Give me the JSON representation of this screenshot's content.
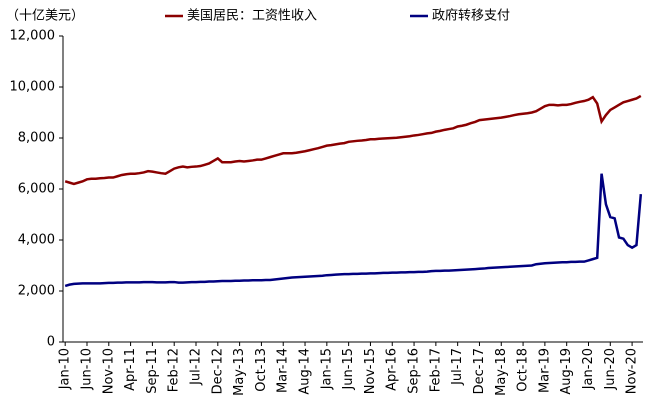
{
  "chart_data": {
    "type": "line",
    "y_unit_label": "（十亿美元）",
    "categories": [
      "Jan-10",
      null,
      null,
      null,
      null,
      "Jun-10",
      null,
      null,
      null,
      null,
      "Nov-10",
      null,
      null,
      null,
      null,
      "Apr-11",
      null,
      null,
      null,
      null,
      "Sep-11",
      null,
      null,
      null,
      null,
      "Feb-12",
      null,
      null,
      null,
      null,
      "Jul-12",
      null,
      null,
      null,
      null,
      "Dec-12",
      null,
      null,
      null,
      null,
      "May-13",
      null,
      null,
      null,
      null,
      "Oct-13",
      null,
      null,
      null,
      null,
      "Mar-14",
      null,
      null,
      null,
      null,
      "Aug-14",
      null,
      null,
      null,
      null,
      "Jan-15",
      null,
      null,
      null,
      null,
      "Jun-15",
      null,
      null,
      null,
      null,
      "Nov-15",
      null,
      null,
      null,
      null,
      "Apr-16",
      null,
      null,
      null,
      null,
      "Sep-16",
      null,
      null,
      null,
      null,
      "Feb-17",
      null,
      null,
      null,
      null,
      "Jul-17",
      null,
      null,
      null,
      null,
      "Dec-17",
      null,
      null,
      null,
      null,
      "May-18",
      null,
      null,
      null,
      null,
      "Oct-18",
      null,
      null,
      null,
      null,
      "Mar-19",
      null,
      null,
      null,
      null,
      "Aug-19",
      null,
      null,
      null,
      null,
      "Jan-20",
      null,
      null,
      null,
      null,
      "Jun-20",
      null,
      null,
      null,
      null,
      "Nov-20",
      null,
      null
    ],
    "series": [
      {
        "name": "美国居民：工资性收入",
        "color": "#8b0000",
        "values": [
          6300,
          6250,
          6200,
          6250,
          6300,
          6380,
          6400,
          6400,
          6420,
          6430,
          6450,
          6450,
          6500,
          6550,
          6580,
          6600,
          6600,
          6620,
          6650,
          6700,
          6680,
          6650,
          6620,
          6600,
          6700,
          6800,
          6850,
          6880,
          6850,
          6870,
          6880,
          6900,
          6950,
          7000,
          7100,
          7200,
          7050,
          7050,
          7050,
          7080,
          7100,
          7080,
          7100,
          7120,
          7150,
          7150,
          7200,
          7250,
          7300,
          7350,
          7400,
          7400,
          7400,
          7420,
          7450,
          7480,
          7520,
          7560,
          7600,
          7650,
          7700,
          7720,
          7750,
          7780,
          7800,
          7850,
          7870,
          7890,
          7900,
          7920,
          7950,
          7950,
          7970,
          7980,
          7990,
          8000,
          8010,
          8030,
          8050,
          8070,
          8100,
          8120,
          8150,
          8180,
          8200,
          8250,
          8280,
          8320,
          8350,
          8380,
          8450,
          8480,
          8520,
          8580,
          8630,
          8700,
          8720,
          8740,
          8760,
          8780,
          8800,
          8830,
          8860,
          8900,
          8930,
          8950,
          8970,
          9000,
          9050,
          9150,
          9250,
          9300,
          9300,
          9280,
          9300,
          9300,
          9330,
          9380,
          9420,
          9450,
          9500,
          9600,
          9350,
          8650,
          8900,
          9100,
          9200,
          9300,
          9400,
          9450,
          9500,
          9550,
          9650
        ]
      },
      {
        "name": "政府转移支付",
        "color": "#000080",
        "values": [
          2200,
          2250,
          2280,
          2290,
          2300,
          2300,
          2300,
          2300,
          2300,
          2310,
          2320,
          2320,
          2330,
          2330,
          2340,
          2340,
          2340,
          2340,
          2350,
          2350,
          2350,
          2340,
          2340,
          2340,
          2350,
          2350,
          2330,
          2330,
          2340,
          2350,
          2350,
          2360,
          2360,
          2370,
          2370,
          2380,
          2390,
          2390,
          2390,
          2400,
          2400,
          2410,
          2410,
          2420,
          2420,
          2420,
          2430,
          2430,
          2450,
          2470,
          2490,
          2510,
          2530,
          2540,
          2550,
          2560,
          2570,
          2580,
          2590,
          2600,
          2620,
          2630,
          2640,
          2650,
          2660,
          2660,
          2670,
          2670,
          2680,
          2680,
          2690,
          2690,
          2700,
          2710,
          2710,
          2720,
          2720,
          2730,
          2730,
          2740,
          2740,
          2750,
          2750,
          2760,
          2780,
          2790,
          2790,
          2800,
          2800,
          2810,
          2820,
          2830,
          2840,
          2850,
          2860,
          2870,
          2880,
          2900,
          2910,
          2920,
          2930,
          2940,
          2950,
          2960,
          2970,
          2980,
          2990,
          3000,
          3050,
          3070,
          3090,
          3100,
          3110,
          3120,
          3130,
          3130,
          3140,
          3140,
          3150,
          3150,
          3200,
          3250,
          3300,
          6600,
          5400,
          4900,
          4850,
          4100,
          4050,
          3800,
          3700,
          3800,
          5800
        ]
      }
    ],
    "ylim": [
      0,
      12000
    ],
    "yticks": [
      {
        "value": 0,
        "label": "0"
      },
      {
        "value": 2000,
        "label": "2,000"
      },
      {
        "value": 4000,
        "label": "4,000"
      },
      {
        "value": 6000,
        "label": "6,000"
      },
      {
        "value": 8000,
        "label": "8,000"
      },
      {
        "value": 10000,
        "label": "10,000"
      },
      {
        "value": 12000,
        "label": "12,000"
      }
    ],
    "grid": false
  }
}
